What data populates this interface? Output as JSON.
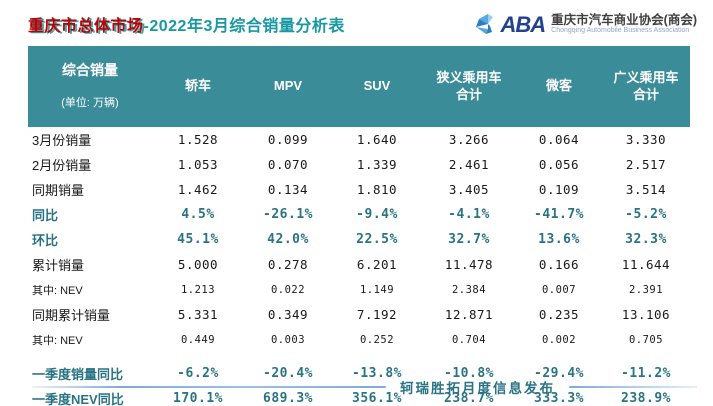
{
  "title": {
    "highlight": "重庆市总体市场",
    "rest": "-2022年3月综合销量分析表"
  },
  "logo": {
    "acronym": "ABA",
    "org_cn": "重庆市汽车商业协会(商会)",
    "org_en": "Chongqing Automobile Business Association",
    "brand_blue_dark": "#24418f",
    "brand_blue_light": "#58a7e0",
    "brand_blue_mid": "#2e7cc6"
  },
  "table": {
    "corner": {
      "line1": "综合销量",
      "line2": "(单位: 万辆)"
    },
    "columns": [
      "轿车",
      "MPV",
      "SUV",
      "狭义乘用车\n合计",
      "微客",
      "广义乘用车\n合计"
    ],
    "rows": [
      {
        "label": "3月份销量",
        "emphasis": false,
        "small": false,
        "gap": false,
        "values": [
          "1.528",
          "0.099",
          "1.640",
          "3.266",
          "0.064",
          "3.330"
        ]
      },
      {
        "label": "2月份销量",
        "emphasis": false,
        "small": false,
        "gap": false,
        "values": [
          "1.053",
          "0.070",
          "1.339",
          "2.461",
          "0.056",
          "2.517"
        ]
      },
      {
        "label": "同期销量",
        "emphasis": false,
        "small": false,
        "gap": false,
        "values": [
          "1.462",
          "0.134",
          "1.810",
          "3.405",
          "0.109",
          "3.514"
        ]
      },
      {
        "label": "同比",
        "emphasis": true,
        "small": false,
        "gap": false,
        "values": [
          "4.5%",
          "-26.1%",
          "-9.4%",
          "-4.1%",
          "-41.7%",
          "-5.2%"
        ]
      },
      {
        "label": "环比",
        "emphasis": true,
        "small": false,
        "gap": false,
        "values": [
          "45.1%",
          "42.0%",
          "22.5%",
          "32.7%",
          "13.6%",
          "32.3%"
        ]
      },
      {
        "label": "累计销量",
        "emphasis": false,
        "small": false,
        "gap": false,
        "values": [
          "5.000",
          "0.278",
          "6.201",
          "11.478",
          "0.166",
          "11.644"
        ]
      },
      {
        "label": "其中: NEV",
        "emphasis": false,
        "small": true,
        "gap": false,
        "values": [
          "1.213",
          "0.022",
          "1.149",
          "2.384",
          "0.007",
          "2.391"
        ]
      },
      {
        "label": "同期累计销量",
        "emphasis": false,
        "small": false,
        "gap": false,
        "values": [
          "5.331",
          "0.349",
          "7.192",
          "12.871",
          "0.235",
          "13.106"
        ]
      },
      {
        "label": "其中: NEV",
        "emphasis": false,
        "small": true,
        "gap": false,
        "values": [
          "0.449",
          "0.003",
          "0.252",
          "0.704",
          "0.002",
          "0.705"
        ]
      },
      {
        "label": "一季度销量同比",
        "emphasis": true,
        "small": false,
        "gap": true,
        "values": [
          "-6.2%",
          "-20.4%",
          "-13.8%",
          "-10.8%",
          "-29.4%",
          "-11.2%"
        ]
      },
      {
        "label": "一季度NEV同比",
        "emphasis": true,
        "small": false,
        "gap": false,
        "values": [
          "170.1%",
          "689.3%",
          "356.1%",
          "238.7%",
          "333.3%",
          "238.9%"
        ]
      }
    ]
  },
  "footer": {
    "watermark": "轲瑞胜拓月度信息发布"
  },
  "colors": {
    "header_teal": "#3a8c99",
    "title_red": "#c00000",
    "title_teal": "#1898a2",
    "emphasis_teal": "#2a7385",
    "footer_line_blue": "#7fa9dc"
  }
}
